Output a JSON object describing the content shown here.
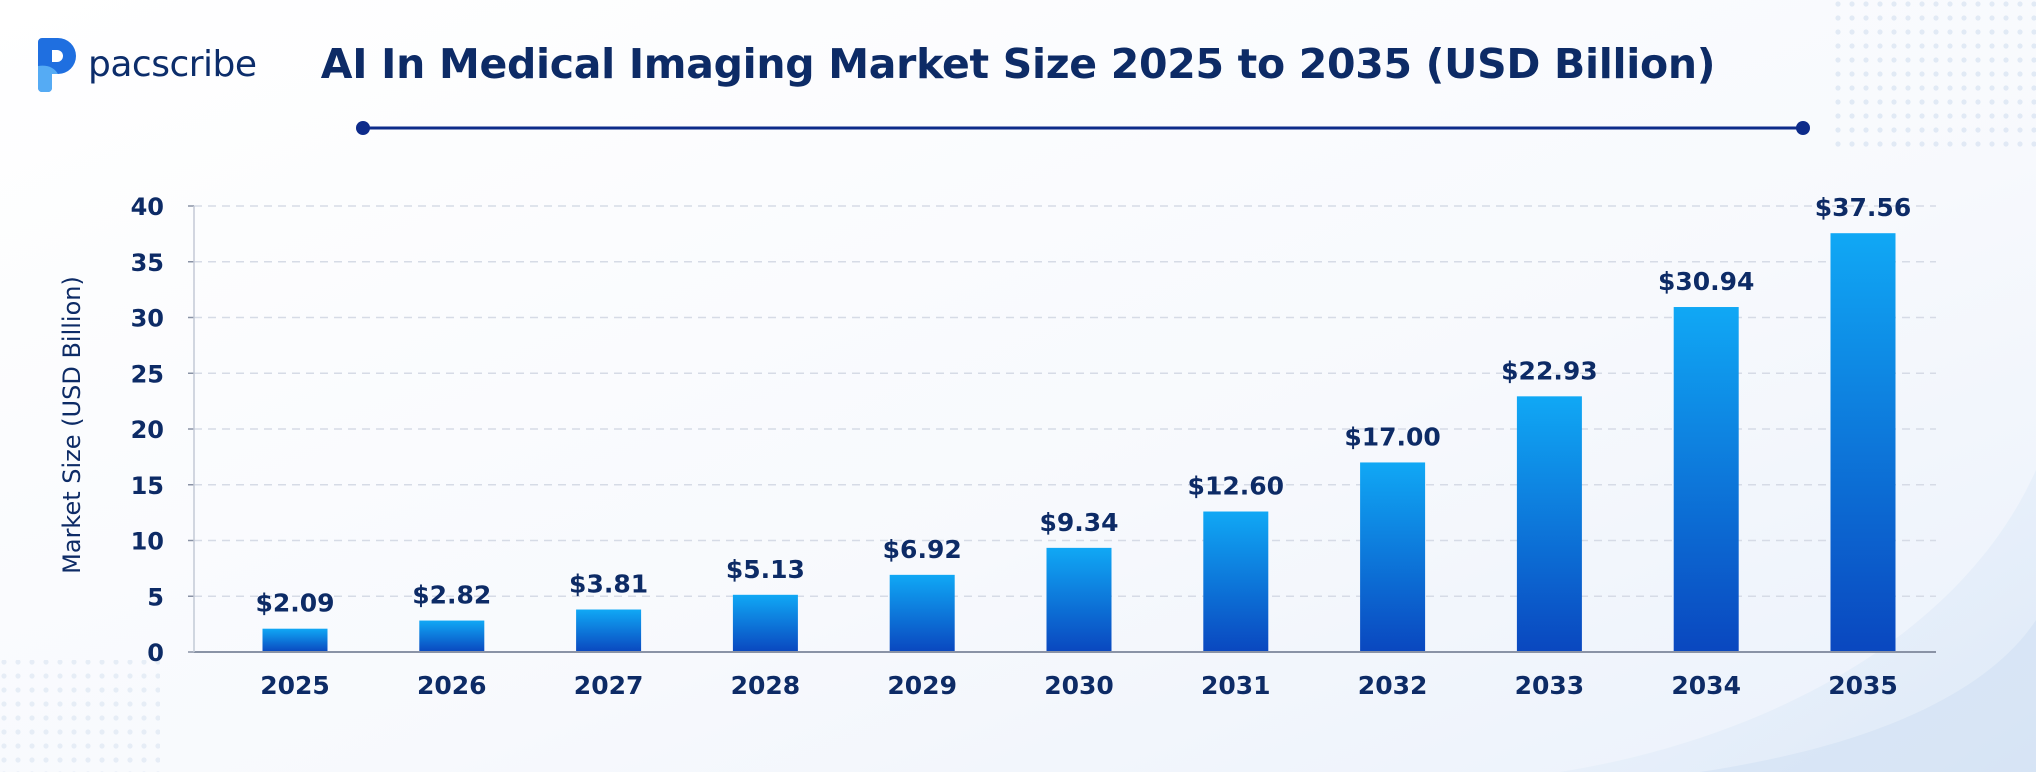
{
  "brand": {
    "name": "pacscribe",
    "accent": "#1f6fe0",
    "text_color": "#0c2d6b"
  },
  "chart_data": {
    "type": "bar",
    "title": "AI In Medical Imaging Market Size 2025 to 2035 (USD Billion)",
    "xlabel": "",
    "ylabel": "Market Size (USD Billion)",
    "categories": [
      "2025",
      "2026",
      "2027",
      "2028",
      "2029",
      "2030",
      "2031",
      "2032",
      "2033",
      "2034",
      "2035"
    ],
    "values": [
      2.09,
      2.82,
      3.81,
      5.13,
      6.92,
      9.34,
      12.6,
      17.0,
      22.93,
      30.94,
      37.56
    ],
    "value_labels": [
      "$2.09",
      "$2.82",
      "$3.81",
      "$5.13",
      "$6.92",
      "$9.34",
      "$12.60",
      "$17.00",
      "$22.93",
      "$30.94",
      "$37.56"
    ],
    "yticks": [
      0,
      5,
      10,
      15,
      20,
      25,
      30,
      35,
      40
    ],
    "ylim": [
      0,
      40
    ],
    "grid": true,
    "legend": "none",
    "colors": {
      "bar_top": "#10a8f5",
      "bar_bottom": "#0a47bf",
      "text": "#0d2b66",
      "grid": "#d6dbe6"
    }
  }
}
